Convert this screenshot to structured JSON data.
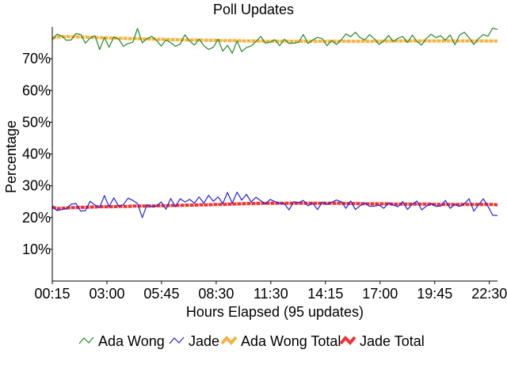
{
  "chart_data": {
    "type": "line",
    "title": "Poll Updates",
    "xlabel": "Hours Elapsed (95 updates)",
    "ylabel": "Percentage",
    "x_ticks": [
      "00:15",
      "03:00",
      "05:45",
      "08:30",
      "11:30",
      "14:15",
      "17:00",
      "19:45",
      "22:30"
    ],
    "y_ticks": [
      "10%",
      "20%",
      "30%",
      "40%",
      "50%",
      "60%",
      "70%"
    ],
    "ylim": [
      0,
      80
    ],
    "grid": false,
    "legend_position": "bottom",
    "series": [
      {
        "name": "Ada Wong",
        "color": "#228b22",
        "style": "thin",
        "values": [
          76.1,
          77.7,
          77.1,
          75.8,
          75.9,
          77.9,
          77.6,
          74.9,
          76.5,
          77.2,
          72.9,
          76.7,
          73.6,
          76.8,
          76.2,
          73.9,
          74.8,
          75.2,
          79.5,
          75.0,
          76.3,
          77.0,
          75.8,
          74.0,
          75.9,
          75.1,
          73.9,
          74.6,
          77.5,
          75.6,
          74.3,
          76.1,
          74.1,
          72.9,
          73.6,
          76.1,
          72.4,
          74.2,
          71.7,
          75.6,
          72.2,
          73.5,
          74.0,
          75.4,
          77.0,
          74.9,
          75.2,
          76.0,
          74.1,
          76.1,
          74.8,
          74.9,
          75.2,
          77.6,
          74.8,
          75.9,
          76.7,
          76.3,
          74.1,
          75.7,
          74.5,
          75.9,
          77.8,
          76.9,
          78.3,
          76.6,
          75.9,
          77.6,
          76.2,
          74.5,
          75.6,
          77.3,
          75.4,
          76.4,
          77.0,
          75.1,
          77.4,
          75.4,
          74.3,
          76.4,
          77.7,
          76.6,
          77.2,
          75.8,
          77.5,
          74.4,
          77.4,
          78.3,
          76.6,
          74.5,
          76.3,
          77.6,
          77.1,
          79.6,
          79.2
        ]
      },
      {
        "name": "Jade",
        "color": "#2222dd",
        "style": "thin",
        "values": [
          23.3,
          22.2,
          22.5,
          22.8,
          24.2,
          24.4,
          22.0,
          22.2,
          25.1,
          23.9,
          23.2,
          26.9,
          23.4,
          26.2,
          23.6,
          24.0,
          26.1,
          25.4,
          24.4,
          20.0,
          24.0,
          23.4,
          23.6,
          24.9,
          22.6,
          26.0,
          23.4,
          25.9,
          24.9,
          25.7,
          24.5,
          26.5,
          24.5,
          27.0,
          25.1,
          26.5,
          24.4,
          27.9,
          24.5,
          28.0,
          25.5,
          27.3,
          24.9,
          26.4,
          25.3,
          24.3,
          25.7,
          25.0,
          24.5,
          24.3,
          22.4,
          25.0,
          24.6,
          25.4,
          23.7,
          24.5,
          22.5,
          24.8,
          24.1,
          24.8,
          25.5,
          25.0,
          22.9,
          25.2,
          22.5,
          23.7,
          24.6,
          23.5,
          23.6,
          23.9,
          22.9,
          24.6,
          23.9,
          23.4,
          25.0,
          22.5,
          24.2,
          25.2,
          22.4,
          23.6,
          24.4,
          23.5,
          23.6,
          25.4,
          22.9,
          24.1,
          23.5,
          24.3,
          25.9,
          22.0,
          24.0,
          25.9,
          23.5,
          20.7,
          20.6
        ]
      },
      {
        "name": "Ada Wong Total",
        "color": "#f5b342",
        "style": "thick",
        "values": [
          76.4,
          76.8,
          76.9,
          77.0,
          76.9,
          76.9,
          76.8,
          76.8,
          76.7,
          76.7,
          76.6,
          76.6,
          76.5,
          76.5,
          76.4,
          76.4,
          76.3,
          76.3,
          76.3,
          76.2,
          76.2,
          76.2,
          76.1,
          76.1,
          76.1,
          76.0,
          76.0,
          76.0,
          75.9,
          75.9,
          75.9,
          75.9,
          75.8,
          75.8,
          75.8,
          75.8,
          75.7,
          75.7,
          75.7,
          75.7,
          75.6,
          75.6,
          75.6,
          75.6,
          75.6,
          75.5,
          75.5,
          75.5,
          75.5,
          75.5,
          75.5,
          75.5,
          75.5,
          75.5,
          75.5,
          75.5,
          75.5,
          75.5,
          75.5,
          75.5,
          75.5,
          75.5,
          75.5,
          75.5,
          75.5,
          75.5,
          75.5,
          75.5,
          75.5,
          75.5,
          75.5,
          75.6,
          75.6,
          75.6,
          75.6,
          75.6,
          75.6,
          75.6,
          75.6,
          75.6,
          75.6,
          75.6,
          75.6,
          75.6,
          75.6,
          75.6,
          75.6,
          75.6,
          75.6,
          75.6,
          75.6,
          75.6,
          75.6,
          75.6,
          75.6
        ]
      },
      {
        "name": "Jade Total",
        "color": "#ee3333",
        "style": "thick",
        "values": [
          23.3,
          22.8,
          22.9,
          23.0,
          23.1,
          23.1,
          23.2,
          23.2,
          23.3,
          23.3,
          23.4,
          23.4,
          23.4,
          23.4,
          23.5,
          23.5,
          23.5,
          23.6,
          23.6,
          23.6,
          23.6,
          23.6,
          23.7,
          23.7,
          23.7,
          23.8,
          23.8,
          23.8,
          23.9,
          23.9,
          23.9,
          24.0,
          24.0,
          24.0,
          24.1,
          24.1,
          24.1,
          24.2,
          24.2,
          24.3,
          24.3,
          24.4,
          24.4,
          24.4,
          24.5,
          24.5,
          24.5,
          24.5,
          24.5,
          24.5,
          24.5,
          24.5,
          24.5,
          24.5,
          24.5,
          24.5,
          24.5,
          24.5,
          24.5,
          24.5,
          24.5,
          24.5,
          24.4,
          24.4,
          24.4,
          24.4,
          24.3,
          24.3,
          24.3,
          24.3,
          24.3,
          24.3,
          24.2,
          24.2,
          24.2,
          24.2,
          24.2,
          24.2,
          24.2,
          24.2,
          24.2,
          24.1,
          24.1,
          24.1,
          24.1,
          24.1,
          24.1,
          24.1,
          24.1,
          24.1,
          24.1,
          24.1,
          24.1,
          24.1,
          24.0
        ]
      }
    ]
  }
}
